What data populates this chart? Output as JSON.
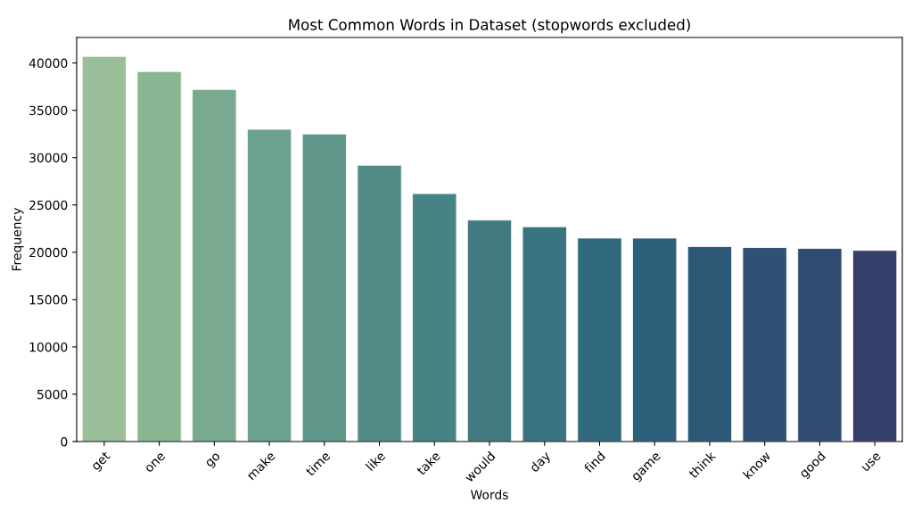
{
  "chart_data": {
    "type": "bar",
    "title": "Most Common Words in Dataset (stopwords excluded)",
    "xlabel": "Words",
    "ylabel": "Frequency",
    "categories": [
      "get",
      "one",
      "go",
      "make",
      "time",
      "like",
      "take",
      "would",
      "day",
      "find",
      "game",
      "think",
      "know",
      "good",
      "use"
    ],
    "values": [
      40700,
      39100,
      37200,
      33000,
      32500,
      29200,
      26200,
      23400,
      22700,
      21500,
      21500,
      20600,
      20500,
      20400,
      20200
    ],
    "colors": [
      "#9abf98",
      "#8ab793",
      "#79a991",
      "#6aa18f",
      "#5f988b",
      "#528b87",
      "#478383",
      "#417b80",
      "#38737f",
      "#30697d",
      "#2c607b",
      "#2d5876",
      "#2f5176",
      "#314a72",
      "#35406a"
    ],
    "ylim": [
      0,
      42700
    ],
    "yticks": [
      0,
      5000,
      10000,
      15000,
      20000,
      25000,
      30000,
      35000,
      40000
    ],
    "grid": false
  }
}
